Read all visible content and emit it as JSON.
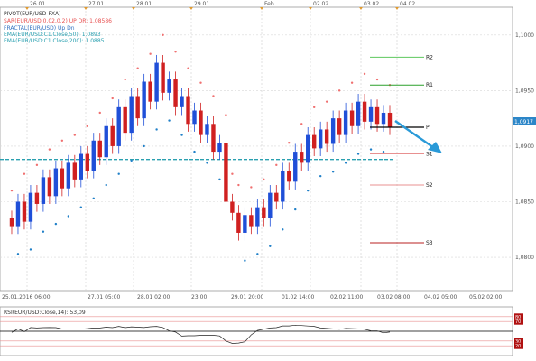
{
  "chart_data": {
    "type": "candlestick",
    "symbol_line": "PIVOT(EUR/USD-FXA)",
    "indicator_lines": [
      {
        "text": "SAR(EUR/USD,0.02,0.2)   UP  DR: 1.08586",
        "color": "#e85050"
      },
      {
        "text": "FRACTAL(EUR/USD)    Up   Dn",
        "color": "#3070c0"
      },
      {
        "text": "EMA(EUR/USD:C1.Close,50): 1.0893",
        "color": "#2aa0b0"
      },
      {
        "text": "EMA(EUR/USD:C1.Close,200): 1.0885",
        "color": "#2aa0b0"
      }
    ],
    "top_date_labels": [
      "26.01",
      "27.01",
      "28.01",
      "29.01",
      "Feb",
      "02.02",
      "03.02",
      "04.02"
    ],
    "x_tick_labels": [
      "25.01.2016 06:00",
      "27.01 05:00",
      "28.01 02:00",
      "23:00",
      "29.01 20:00",
      "01.02 14:00",
      "02.02 11:00",
      "03.02 08:00",
      "04.02 05:00",
      "05.02 02:00"
    ],
    "y_tick_labels": [
      "1,1000",
      "1,0950",
      "1,0900",
      "1,0850",
      "1,0800"
    ],
    "ylim": [
      1.077,
      1.1025
    ],
    "current_price_label": "1,0917",
    "current_price": 1.0917,
    "pivot_levels": [
      {
        "label": "R2",
        "value": 1.098,
        "color": "#5ec85e"
      },
      {
        "label": "R1",
        "value": 1.0955,
        "color": "#2ca02c"
      },
      {
        "label": "P",
        "value": 1.0917,
        "color": "#000000"
      },
      {
        "label": "S1",
        "value": 1.0893,
        "color": "#e89090"
      },
      {
        "label": "S2",
        "value": 1.0865,
        "color": "#e89090"
      },
      {
        "label": "S3",
        "value": 1.0813,
        "color": "#b82020"
      }
    ],
    "ema_level": 1.0888,
    "rsi": {
      "label": "RSI(EUR/USD:Close,14): 53,09",
      "value": 53.09,
      "levels": [
        "80",
        "70",
        "30",
        "20"
      ],
      "ylim": [
        0,
        100
      ]
    },
    "price_path": [
      1.0835,
      1.0828,
      1.085,
      1.0832,
      1.0858,
      1.0848,
      1.0872,
      1.0855,
      1.088,
      1.0862,
      1.0885,
      1.087,
      1.0893,
      1.0878,
      1.0905,
      1.089,
      1.0918,
      1.09,
      1.0935,
      1.0912,
      1.0945,
      1.0925,
      1.0958,
      1.094,
      1.0975,
      1.0948,
      1.096,
      1.0935,
      1.0945,
      1.092,
      1.0932,
      1.091,
      1.092,
      1.0895,
      1.0903,
      1.085,
      1.084,
      1.0822,
      1.0838,
      1.0828,
      1.0845,
      1.0835,
      1.0858,
      1.085,
      1.0878,
      1.0868,
      1.0895,
      1.0885,
      1.091,
      1.0898,
      1.0915,
      1.0902,
      1.0925,
      1.091,
      1.0932,
      1.0918,
      1.094,
      1.0922,
      1.0935,
      1.092,
      1.093,
      1.0917
    ]
  }
}
